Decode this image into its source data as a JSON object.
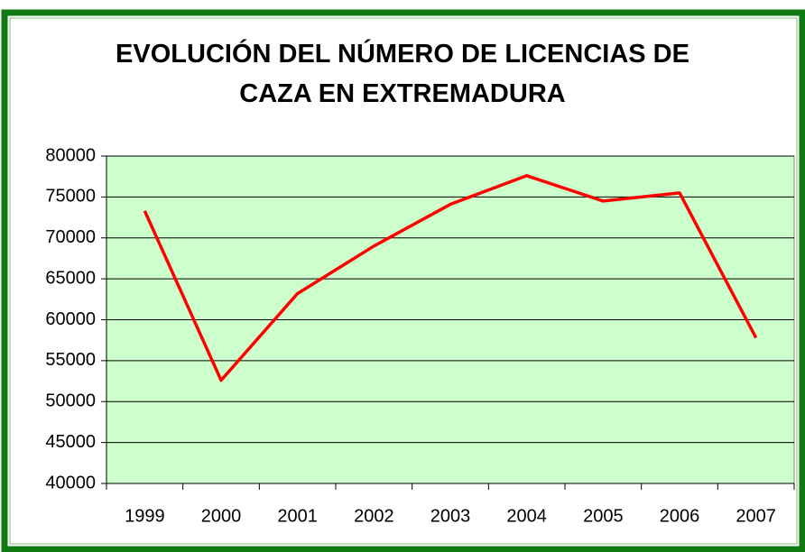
{
  "chart_data": {
    "type": "line",
    "title": "EVOLUCIÓN DEL NÚMERO DE LICENCIAS DE CAZA EN EXTREMADURA",
    "categories": [
      "1999",
      "2000",
      "2001",
      "2002",
      "2003",
      "2004",
      "2005",
      "2006",
      "2007"
    ],
    "series": [
      {
        "color": "#ff0000",
        "values": [
          73300,
          52600,
          63200,
          69000,
          74100,
          77600,
          74500,
          75500,
          57800
        ]
      }
    ],
    "ylim": [
      40000,
      80000
    ],
    "yticks": [
      40000,
      45000,
      50000,
      55000,
      60000,
      65000,
      70000,
      75000,
      80000
    ],
    "grid": true,
    "plot_background": "#ccffcc"
  }
}
